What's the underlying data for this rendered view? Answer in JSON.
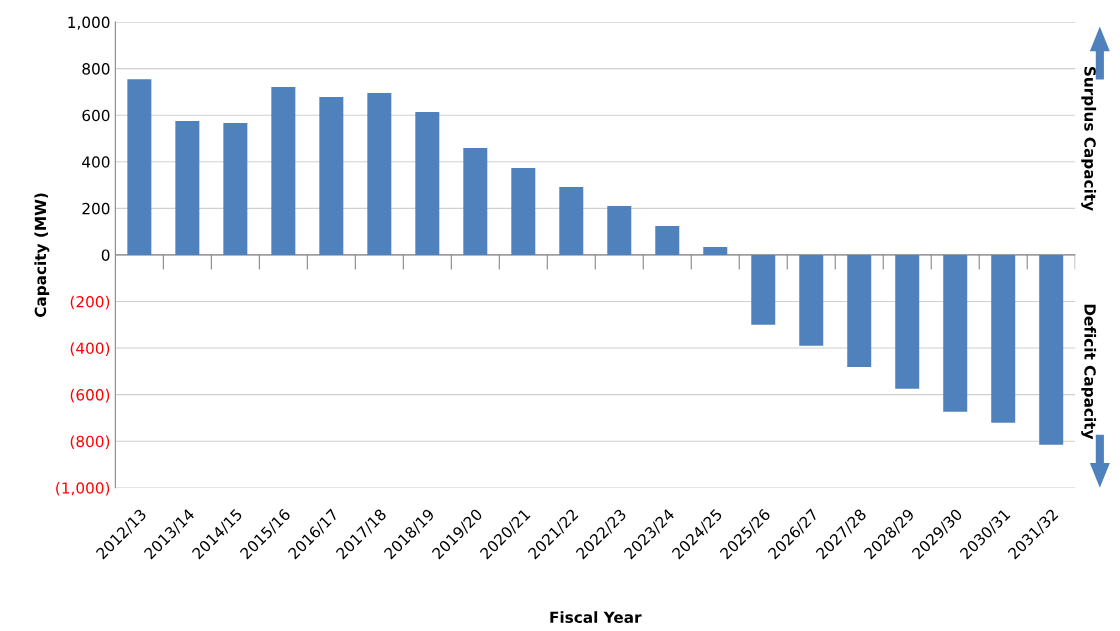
{
  "chart_data": {
    "type": "bar",
    "xlabel": "Fiscal Year",
    "ylabel": "Capacity (MW)",
    "categories": [
      "2012/13",
      "2013/14",
      "2014/15",
      "2015/16",
      "2016/17",
      "2017/18",
      "2018/19",
      "2019/20",
      "2020/21",
      "2021/22",
      "2022/23",
      "2023/24",
      "2024/25",
      "2025/26",
      "2026/27",
      "2027/28",
      "2028/29",
      "2029/30",
      "2030/31",
      "2031/32"
    ],
    "series": [
      {
        "color": "#4f81bd",
        "values": [
          755,
          575,
          567,
          721,
          678,
          695,
          614,
          459,
          373,
          292,
          210,
          124,
          34,
          -300,
          -390,
          -481,
          -575,
          -674,
          -721,
          -815
        ]
      }
    ],
    "ylim": [
      -1000,
      1000
    ],
    "yticks": [
      {
        "value": -1000,
        "label": "(1,000)"
      },
      {
        "value": -800,
        "label": "(800)"
      },
      {
        "value": -600,
        "label": "(600)"
      },
      {
        "value": -400,
        "label": "(400)"
      },
      {
        "value": -200,
        "label": "(200)"
      },
      0,
      200,
      400,
      600,
      800,
      {
        "value": 1000,
        "label": "1,000"
      }
    ],
    "grid": "y",
    "annotations": [
      "Surplus Capacity",
      "Deficit Capacity"
    ]
  }
}
